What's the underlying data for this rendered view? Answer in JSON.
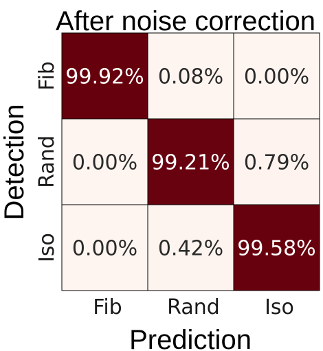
{
  "chart_data": {
    "type": "heatmap",
    "title": "After noise correction",
    "xlabel": "Prediction",
    "ylabel": "Detection",
    "x_categories": [
      "Fib",
      "Rand",
      "Iso"
    ],
    "y_categories": [
      "Fib",
      "Rand",
      "Iso"
    ],
    "values": [
      [
        99.92,
        0.08,
        0.0
      ],
      [
        0.0,
        99.21,
        0.79
      ],
      [
        0.0,
        0.42,
        99.58
      ]
    ],
    "cell_labels": [
      [
        "99.92%",
        "0.08%",
        "0.00%"
      ],
      [
        "0.00%",
        "99.21%",
        "0.79%"
      ],
      [
        "0.00%",
        "0.42%",
        "99.58%"
      ]
    ],
    "colormap": {
      "low": "#fff5f0",
      "high": "#67000d"
    },
    "range": [
      0,
      100
    ]
  }
}
